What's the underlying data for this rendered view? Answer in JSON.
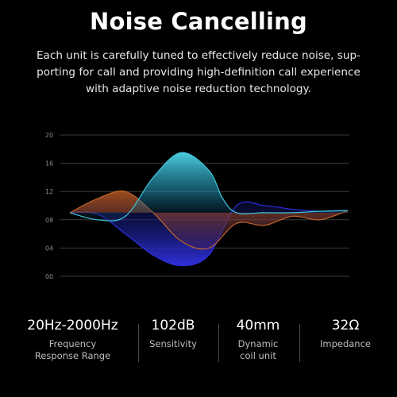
{
  "title": "Noise Cancelling",
  "description": {
    "line1": "Each unit is carefully tuned to effectively reduce noise, sup-",
    "line2": "porting for call and providing high-definition call experience",
    "line3": "with adaptive noise reduction technology."
  },
  "chart_data": {
    "type": "area",
    "y_ticks": [
      "20",
      "16",
      "12",
      "08",
      "04",
      "00"
    ],
    "ylim": [
      0,
      20
    ],
    "grid": true,
    "series": [
      {
        "color": "#3fc8de",
        "x": [
          0,
          10,
          20,
          30,
          40,
          50,
          55,
          60,
          70,
          80,
          90,
          100
        ],
        "values": [
          9,
          8,
          8.5,
          14,
          17.5,
          15,
          11,
          9,
          9,
          9,
          9.2,
          9.3
        ]
      },
      {
        "color": "#2b2ed8",
        "x": [
          0,
          10,
          20,
          30,
          40,
          50,
          60,
          70,
          80,
          90,
          100
        ],
        "values": [
          9,
          8.8,
          6,
          3,
          1.5,
          3,
          10,
          10,
          9.5,
          9.2,
          9.3
        ]
      },
      {
        "color": "#c0652a",
        "x": [
          0,
          10,
          20,
          30,
          40,
          50,
          60,
          70,
          80,
          90,
          100
        ],
        "values": [
          9,
          11,
          12,
          9,
          5,
          4,
          7.5,
          7.2,
          8.5,
          8,
          9.3
        ]
      }
    ]
  },
  "specs": [
    {
      "value": "20Hz-2000Hz",
      "label1": "Frequency",
      "label2": "Response Range"
    },
    {
      "value": "102dB",
      "label1": "Sensitivity",
      "label2": ""
    },
    {
      "value": "40mm",
      "label1": "Dynamic",
      "label2": "coil unit"
    },
    {
      "value": "32Ω",
      "label1": "Impedance",
      "label2": ""
    }
  ]
}
